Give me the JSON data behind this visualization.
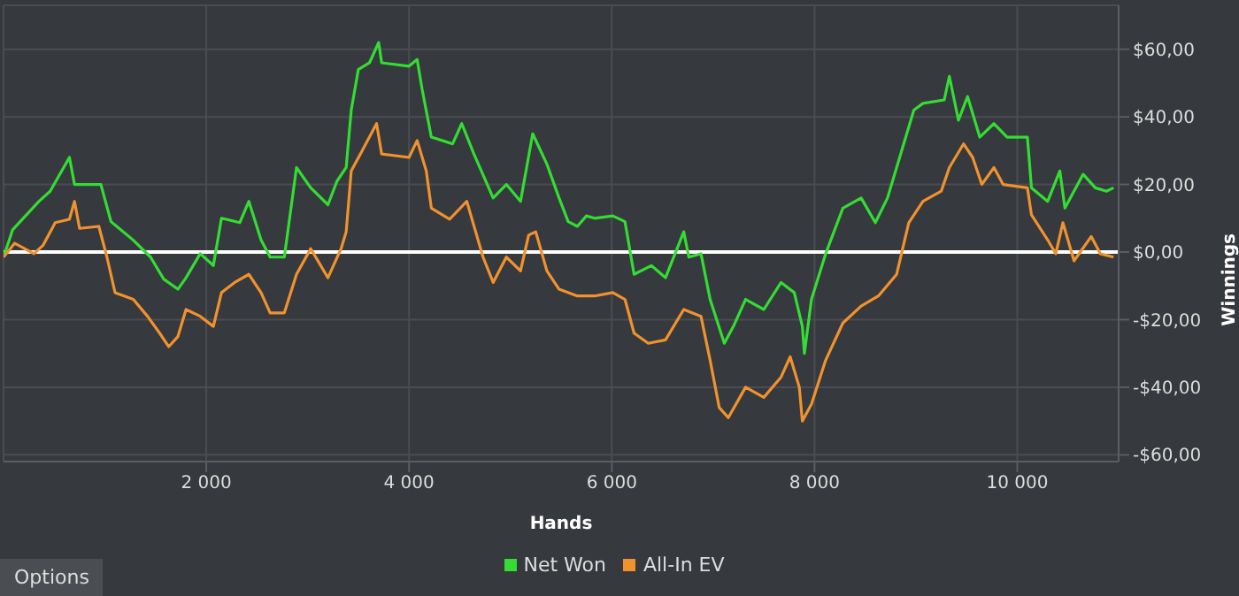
{
  "chart_data": {
    "type": "line",
    "xlabel": "Hands",
    "ylabel": "Winnings",
    "annotations": [
      "Options"
    ],
    "xlim": [
      0,
      11000
    ],
    "ylim": [
      -62,
      73
    ],
    "xticks": [
      {
        "value": 2000,
        "label": "2 000"
      },
      {
        "value": 4000,
        "label": "4 000"
      },
      {
        "value": 6000,
        "label": "6 000"
      },
      {
        "value": 8000,
        "label": "8 000"
      },
      {
        "value": 10000,
        "label": "10 000"
      }
    ],
    "yticks": [
      {
        "value": -60,
        "label": "-$60,00"
      },
      {
        "value": -40,
        "label": "-$40,00"
      },
      {
        "value": -20,
        "label": "-$20,00"
      },
      {
        "value": 0,
        "label": "$0,00"
      },
      {
        "value": 20,
        "label": "$20,00"
      },
      {
        "value": 40,
        "label": "$40,00"
      },
      {
        "value": 60,
        "label": "$60,00"
      }
    ],
    "grid": true,
    "legend": "bottom",
    "marker": "none",
    "line_style": "solid",
    "ref_lines": [
      {
        "axis": "y",
        "value": 0,
        "label": null,
        "color": "#ffffff"
      }
    ],
    "series": [
      {
        "name": "Net Won",
        "color": "#33dd33",
        "x": [
          0,
          90,
          350,
          460,
          650,
          700,
          960,
          1060,
          1280,
          1450,
          1580,
          1720,
          1800,
          1940,
          2070,
          2150,
          2330,
          2420,
          2540,
          2630,
          2770,
          2890,
          3030,
          3200,
          3290,
          3380,
          3430,
          3500,
          3610,
          3700,
          3730,
          4000,
          4080,
          4130,
          4220,
          4430,
          4520,
          4640,
          4830,
          4960,
          5100,
          5220,
          5360,
          5480,
          5570,
          5660,
          5750,
          5830,
          6010,
          6130,
          6220,
          6390,
          6530,
          6710,
          6760,
          6880,
          6970,
          7110,
          7200,
          7320,
          7500,
          7670,
          7800,
          7880,
          7900,
          7970,
          8110,
          8280,
          8460,
          8600,
          8720,
          8980,
          9070,
          9280,
          9330,
          9420,
          9510,
          9630,
          9770,
          9900,
          10100,
          10140,
          10300,
          10420,
          10470,
          10650,
          10770,
          10880,
          10950
        ],
        "values": [
          -1.5,
          6.6,
          15,
          18,
          28,
          20,
          20,
          9,
          3.5,
          -1.5,
          -8,
          -11,
          -7.6,
          -0.5,
          -4,
          10,
          8.7,
          15,
          3.6,
          -1.5,
          -1.5,
          25,
          19,
          14,
          21,
          25,
          42,
          54,
          56,
          62,
          56,
          55,
          57,
          48,
          34,
          32,
          38,
          29,
          16,
          20,
          15,
          35,
          26,
          16,
          9,
          7.6,
          10.7,
          10,
          10.7,
          9,
          -6.6,
          -4,
          -7.6,
          6,
          -1.5,
          -0.5,
          -14,
          -27,
          -22,
          -14,
          -17,
          -9,
          -12,
          -22,
          -30,
          -14,
          -0.5,
          13,
          16,
          8.7,
          16,
          42,
          44,
          45,
          52,
          39,
          46,
          34,
          38,
          34,
          34,
          19,
          15,
          24,
          13,
          23,
          19,
          18,
          19
        ]
      },
      {
        "name": "All-In EV",
        "color": "#f0922e",
        "x": [
          0,
          110,
          300,
          390,
          510,
          650,
          700,
          750,
          940,
          1020,
          1100,
          1280,
          1420,
          1540,
          1630,
          1720,
          1800,
          1940,
          2070,
          2150,
          2280,
          2420,
          2540,
          2630,
          2770,
          2890,
          3030,
          3200,
          3330,
          3380,
          3430,
          3520,
          3680,
          3730,
          4000,
          4080,
          4170,
          4220,
          4400,
          4570,
          4730,
          4830,
          4960,
          5100,
          5180,
          5250,
          5360,
          5480,
          5660,
          5830,
          6010,
          6130,
          6220,
          6360,
          6530,
          6710,
          6880,
          6970,
          7060,
          7150,
          7320,
          7500,
          7670,
          7760,
          7850,
          7880,
          7970,
          8110,
          8280,
          8460,
          8630,
          8810,
          8930,
          9070,
          9250,
          9330,
          9470,
          9560,
          9650,
          9770,
          9860,
          10100,
          10140,
          10300,
          10380,
          10450,
          10560,
          10730,
          10820,
          10950
        ],
        "values": [
          -1.5,
          2.6,
          -0.5,
          2,
          8.7,
          9.7,
          15,
          7,
          7.6,
          -1.5,
          -12,
          -14,
          -19,
          -24,
          -28,
          -25,
          -17,
          -19,
          -22,
          -12,
          -9,
          -6.6,
          -12,
          -18,
          -18,
          -6.6,
          1,
          -7.6,
          1,
          6,
          24,
          29,
          38,
          29,
          28,
          33,
          24,
          13,
          9.7,
          15,
          -1.5,
          -9,
          -1.5,
          -5.6,
          5,
          6,
          -5.6,
          -11,
          -13,
          -13,
          -12,
          -14,
          -24,
          -27,
          -26,
          -17,
          -19,
          -32,
          -46,
          -49,
          -40,
          -43,
          -37,
          -31,
          -40,
          -50,
          -45,
          -32,
          -21,
          -16,
          -13,
          -6.6,
          8.7,
          15,
          18,
          25,
          32,
          28,
          20,
          25,
          20,
          19,
          11,
          3.6,
          -0.5,
          8.7,
          -2.6,
          4.6,
          -0.5,
          -1.5
        ]
      }
    ]
  }
}
